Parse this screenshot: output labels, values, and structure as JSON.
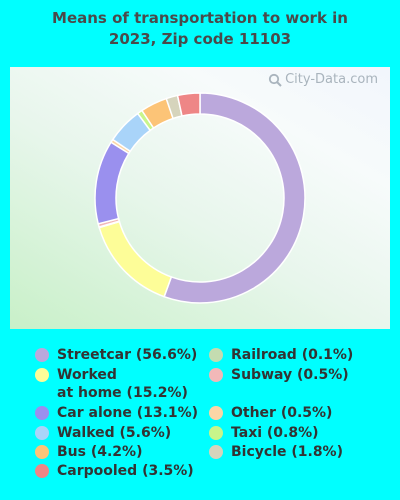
{
  "title": "Means of transportation to work in\n2023, Zip code 11103",
  "watermark": "City-Data.com",
  "chart_data": {
    "type": "pie",
    "donut": true,
    "slices": [
      {
        "label": "Streetcar",
        "value": 56.6,
        "display": "Streetcar (56.6%)",
        "color": "#bba8dc"
      },
      {
        "label": "Worked at home",
        "value": 15.2,
        "display": "Worked\nat home (15.2%)",
        "color": "#fdfd98"
      },
      {
        "label": "Railroad",
        "value": 0.1,
        "display": "Railroad (0.1%)",
        "color": "#c4dcb0"
      },
      {
        "label": "Subway",
        "value": 0.5,
        "display": "Subway (0.5%)",
        "color": "#f2b8b8"
      },
      {
        "label": "Car alone",
        "value": 13.1,
        "display": "Car alone (13.1%)",
        "color": "#9a90ee"
      },
      {
        "label": "Other",
        "value": 0.5,
        "display": "Other (0.5%)",
        "color": "#fbd6a6"
      },
      {
        "label": "Walked",
        "value": 5.6,
        "display": "Walked (5.6%)",
        "color": "#a9d4f9"
      },
      {
        "label": "Taxi",
        "value": 0.8,
        "display": "Taxi (0.8%)",
        "color": "#c8f58a"
      },
      {
        "label": "Bus",
        "value": 4.2,
        "display": "Bus (4.2%)",
        "color": "#fcc477"
      },
      {
        "label": "Bicycle",
        "value": 1.8,
        "display": "Bicycle (1.8%)",
        "color": "#d6d4bc"
      },
      {
        "label": "Carpooled",
        "value": 3.5,
        "display": "Carpooled (3.5%)",
        "color": "#ee8686"
      }
    ],
    "legend_columns": [
      [
        "Streetcar",
        "Worked at home",
        "Car alone",
        "Walked",
        "Bus",
        "Carpooled"
      ],
      [
        "Railroad",
        "Subway",
        "Other",
        "Taxi",
        "Bicycle"
      ]
    ]
  }
}
